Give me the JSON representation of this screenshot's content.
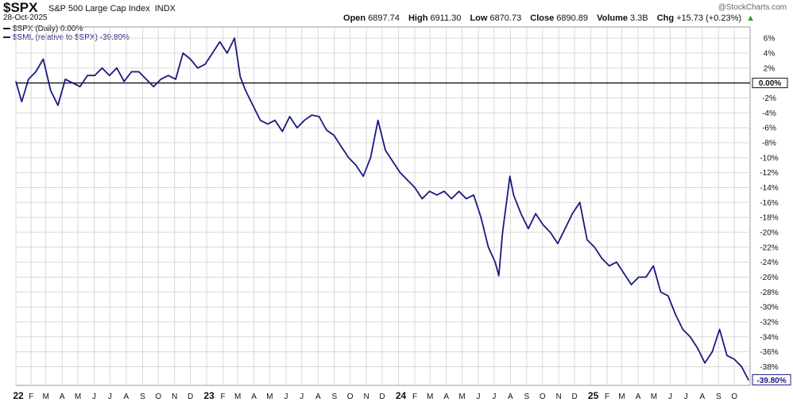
{
  "header": {
    "ticker": "$SPX",
    "name": "S&P 500 Large Cap Index",
    "exchange": "INDX",
    "date": "28-Oct-2025",
    "open_label": "Open",
    "open": "6897.74",
    "high_label": "High",
    "high": "6911.30",
    "low_label": "Low",
    "low": "6870.73",
    "close_label": "Close",
    "close": "6890.89",
    "volume_label": "Volume",
    "volume": "3.3B",
    "chg_label": "Chg",
    "chg": "+15.73 (+0.23%)",
    "brand": "@StockCharts.com"
  },
  "legend": [
    {
      "text": "$SPX (Daily) 0.00%",
      "color": "#111111"
    },
    {
      "text": "$SML (relative to $SPX) -39.80%",
      "color": "#1a1a80"
    }
  ],
  "colors": {
    "line": "#1a1a80",
    "zero": "#222222",
    "grid": "#d8d8d8"
  },
  "chart_data": {
    "type": "line",
    "title": "",
    "ylim": [
      -40.5,
      7.5
    ],
    "y_ticks": [
      "6%",
      "4%",
      "2%",
      "0.00%",
      "-2%",
      "-4%",
      "-6%",
      "-8%",
      "-10%",
      "-12%",
      "-14%",
      "-16%",
      "-18%",
      "-20%",
      "-22%",
      "-24%",
      "-26%",
      "-28%",
      "-30%",
      "-32%",
      "-34%",
      "-36%",
      "-38%"
    ],
    "y_tick_values": [
      6,
      4,
      2,
      0,
      -2,
      -4,
      -6,
      -8,
      -10,
      -12,
      -14,
      -16,
      -18,
      -20,
      -22,
      -24,
      -26,
      -28,
      -30,
      -32,
      -34,
      -36,
      -38
    ],
    "x_ticks": [
      "22",
      "F",
      "M",
      "A",
      "M",
      "J",
      "J",
      "A",
      "S",
      "O",
      "N",
      "D",
      "23",
      "F",
      "M",
      "A",
      "M",
      "J",
      "J",
      "A",
      "S",
      "O",
      "N",
      "D",
      "24",
      "F",
      "M",
      "A",
      "M",
      "J",
      "J",
      "A",
      "S",
      "O",
      "N",
      "D",
      "25",
      "F",
      "M",
      "A",
      "M",
      "J",
      "J",
      "A",
      "S",
      "O"
    ],
    "last_label": "-39.80%",
    "series": [
      {
        "name": "$SML (relative to $SPX)",
        "x": [
          "2022-01-03",
          "2022-01-14",
          "2022-01-27",
          "2022-02-10",
          "2022-02-24",
          "2022-03-10",
          "2022-03-24",
          "2022-04-07",
          "2022-04-21",
          "2022-05-05",
          "2022-05-19",
          "2022-06-02",
          "2022-06-16",
          "2022-06-30",
          "2022-07-14",
          "2022-07-28",
          "2022-08-11",
          "2022-08-25",
          "2022-09-08",
          "2022-09-22",
          "2022-10-06",
          "2022-10-20",
          "2022-11-03",
          "2022-11-17",
          "2022-12-01",
          "2022-12-15",
          "2022-12-29",
          "2023-01-12",
          "2023-01-26",
          "2023-02-09",
          "2023-02-23",
          "2023-03-06",
          "2023-03-16",
          "2023-03-30",
          "2023-04-13",
          "2023-04-27",
          "2023-05-11",
          "2023-05-25",
          "2023-06-08",
          "2023-06-22",
          "2023-07-06",
          "2023-07-20",
          "2023-08-03",
          "2023-08-17",
          "2023-08-31",
          "2023-09-14",
          "2023-09-28",
          "2023-10-12",
          "2023-10-26",
          "2023-11-09",
          "2023-11-23",
          "2023-12-07",
          "2023-12-21",
          "2024-01-04",
          "2024-01-18",
          "2024-02-01",
          "2024-02-15",
          "2024-02-29",
          "2024-03-14",
          "2024-03-28",
          "2024-04-11",
          "2024-04-25",
          "2024-05-09",
          "2024-05-23",
          "2024-06-06",
          "2024-06-20",
          "2024-07-03",
          "2024-07-10",
          "2024-07-17",
          "2024-07-31",
          "2024-08-07",
          "2024-08-21",
          "2024-09-04",
          "2024-09-18",
          "2024-10-02",
          "2024-10-16",
          "2024-10-30",
          "2024-11-13",
          "2024-11-27",
          "2024-12-11",
          "2024-12-25",
          "2025-01-08",
          "2025-01-22",
          "2025-02-05",
          "2025-02-19",
          "2025-03-05",
          "2025-03-19",
          "2025-04-02",
          "2025-04-16",
          "2025-04-30",
          "2025-05-14",
          "2025-05-28",
          "2025-06-11",
          "2025-06-25",
          "2025-07-09",
          "2025-07-23",
          "2025-08-06",
          "2025-08-20",
          "2025-09-03",
          "2025-09-17",
          "2025-10-01",
          "2025-10-15",
          "2025-10-28"
        ],
        "y": [
          0.2,
          -2.5,
          0.5,
          1.5,
          3.2,
          -1.0,
          -3.0,
          0.5,
          0.0,
          -0.5,
          1.0,
          1.0,
          2.0,
          1.0,
          2.0,
          0.2,
          1.5,
          1.5,
          0.5,
          -0.5,
          0.5,
          1.0,
          0.5,
          4.0,
          3.2,
          2.0,
          2.5,
          4.0,
          5.5,
          4.0,
          6.0,
          0.8,
          -1.0,
          -3.0,
          -5.0,
          -5.5,
          -5.0,
          -6.5,
          -4.5,
          -6.0,
          -5.0,
          -4.3,
          -4.5,
          -6.3,
          -7.0,
          -8.5,
          -10.0,
          -11.0,
          -12.5,
          -10.0,
          -5.0,
          -9.0,
          -10.5,
          -12.0,
          -13.0,
          -14.0,
          -15.5,
          -14.5,
          -15.0,
          -14.5,
          -15.5,
          -14.5,
          -15.5,
          -15.0,
          -18.0,
          -22.0,
          -24.0,
          -25.8,
          -20.0,
          -12.5,
          -15.0,
          -17.5,
          -19.5,
          -17.5,
          -19.0,
          -20.0,
          -21.5,
          -19.5,
          -17.5,
          -16.0,
          -21.0,
          -22.0,
          -23.5,
          -24.5,
          -24.0,
          -25.5,
          -27.0,
          -26.0,
          -26.0,
          -24.5,
          -28.0,
          -28.5,
          -31.0,
          -33.0,
          -34.0,
          -35.5,
          -37.5,
          -36.0,
          -33.0,
          -36.5,
          -37.0,
          -38.0,
          -39.8
        ]
      }
    ]
  }
}
